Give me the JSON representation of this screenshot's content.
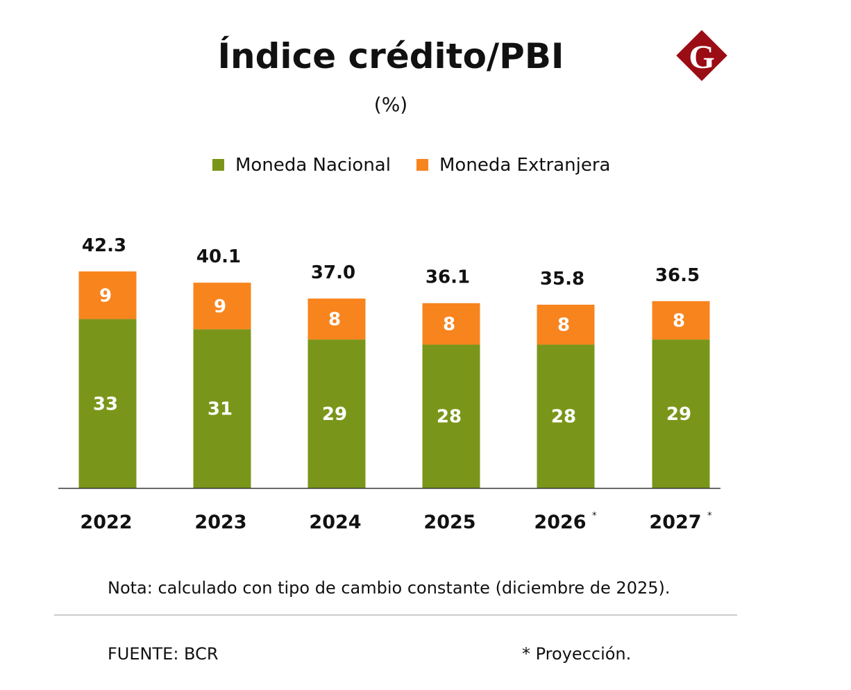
{
  "chart_data": {
    "type": "bar",
    "stacked": true,
    "title": "Índice crédito/PBI",
    "subtitle": "(%)",
    "categories": [
      "2022",
      "2023",
      "2024",
      "2025",
      "2026",
      "2027"
    ],
    "category_markers": [
      "",
      "",
      "",
      "",
      "*",
      "*"
    ],
    "series": [
      {
        "name": "Moneda Nacional",
        "color": "#7a961a",
        "values": [
          33,
          31,
          29,
          28,
          28,
          29
        ]
      },
      {
        "name": "Moneda Extranjera",
        "color": "#f8841e",
        "values": [
          9,
          9,
          8,
          8,
          8,
          8
        ]
      }
    ],
    "totals": [
      "42.3",
      "40.1",
      "37.0",
      "36.1",
      "35.8",
      "36.5"
    ],
    "ylim": [
      0,
      42.3
    ],
    "grid": false,
    "legend_position": "top",
    "note": "Nota: calculado con tipo de cambio constante (diciembre de 2025).",
    "source": "FUENTE: BCR",
    "footnote": "* Proyección."
  },
  "logo": {
    "text": "G",
    "color": "#9b0d14"
  }
}
